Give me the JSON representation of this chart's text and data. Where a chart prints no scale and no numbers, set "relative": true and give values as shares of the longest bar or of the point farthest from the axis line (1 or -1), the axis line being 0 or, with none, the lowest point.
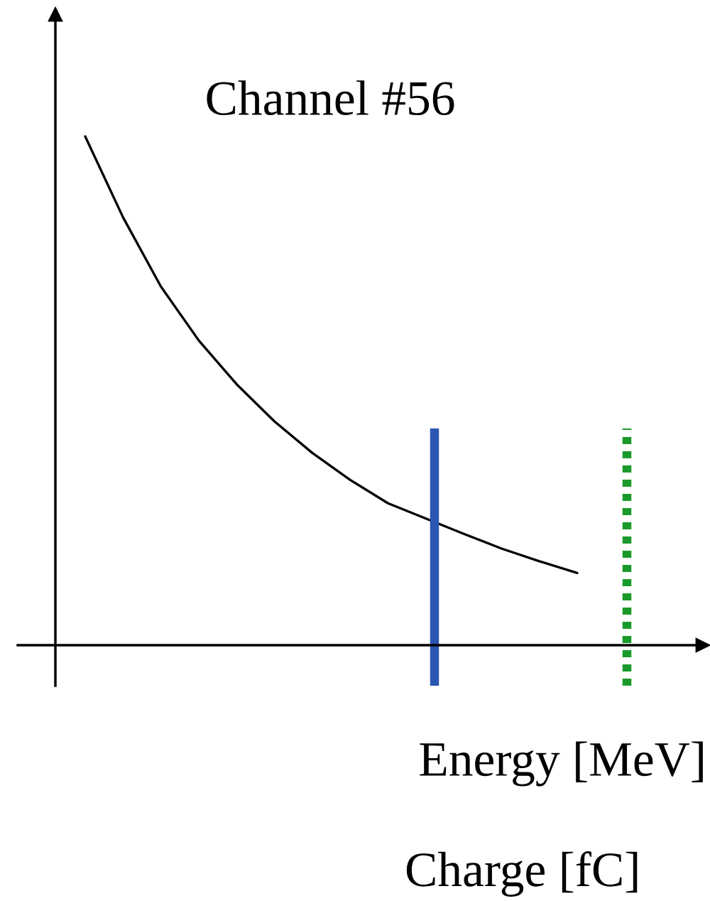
{
  "chart_data": {
    "type": "line",
    "title": "Channel #56",
    "xlabel": "Energy [MeV]",
    "annotations": [
      "Charge [fC]"
    ],
    "relative": true,
    "legend": false,
    "marker": "none",
    "line_style": "solid",
    "categories": [
      null,
      null,
      null,
      null,
      null,
      null,
      null,
      null,
      null,
      null,
      null,
      null,
      null,
      null
    ],
    "series": [
      {
        "color": "#000000",
        "values": [
          1,
          0.841,
          0.705,
          0.599,
          0.513,
          0.44,
          0.378,
          0.325,
          0.279,
          0.249,
          0.219,
          0.19,
          0.165,
          0.142
        ]
      }
    ]
  }
}
